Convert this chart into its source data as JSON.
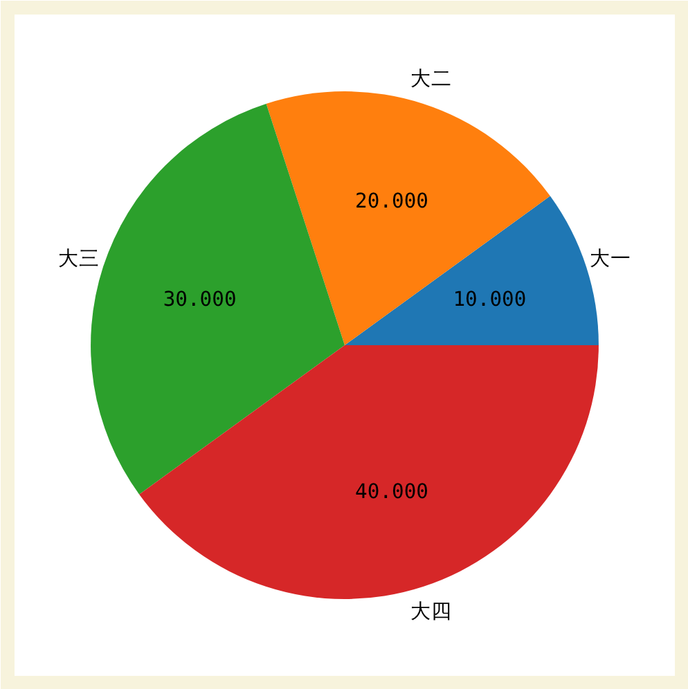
{
  "chart_data": {
    "type": "pie",
    "categories": [
      "大一",
      "大二",
      "大三",
      "大四"
    ],
    "values": [
      10,
      20,
      30,
      40
    ],
    "colors": [
      "#1f77b4",
      "#ff7f0e",
      "#2ca02c",
      "#d62728"
    ],
    "value_labels": [
      "10.000",
      "20.000",
      "30.000",
      "40.000"
    ]
  }
}
